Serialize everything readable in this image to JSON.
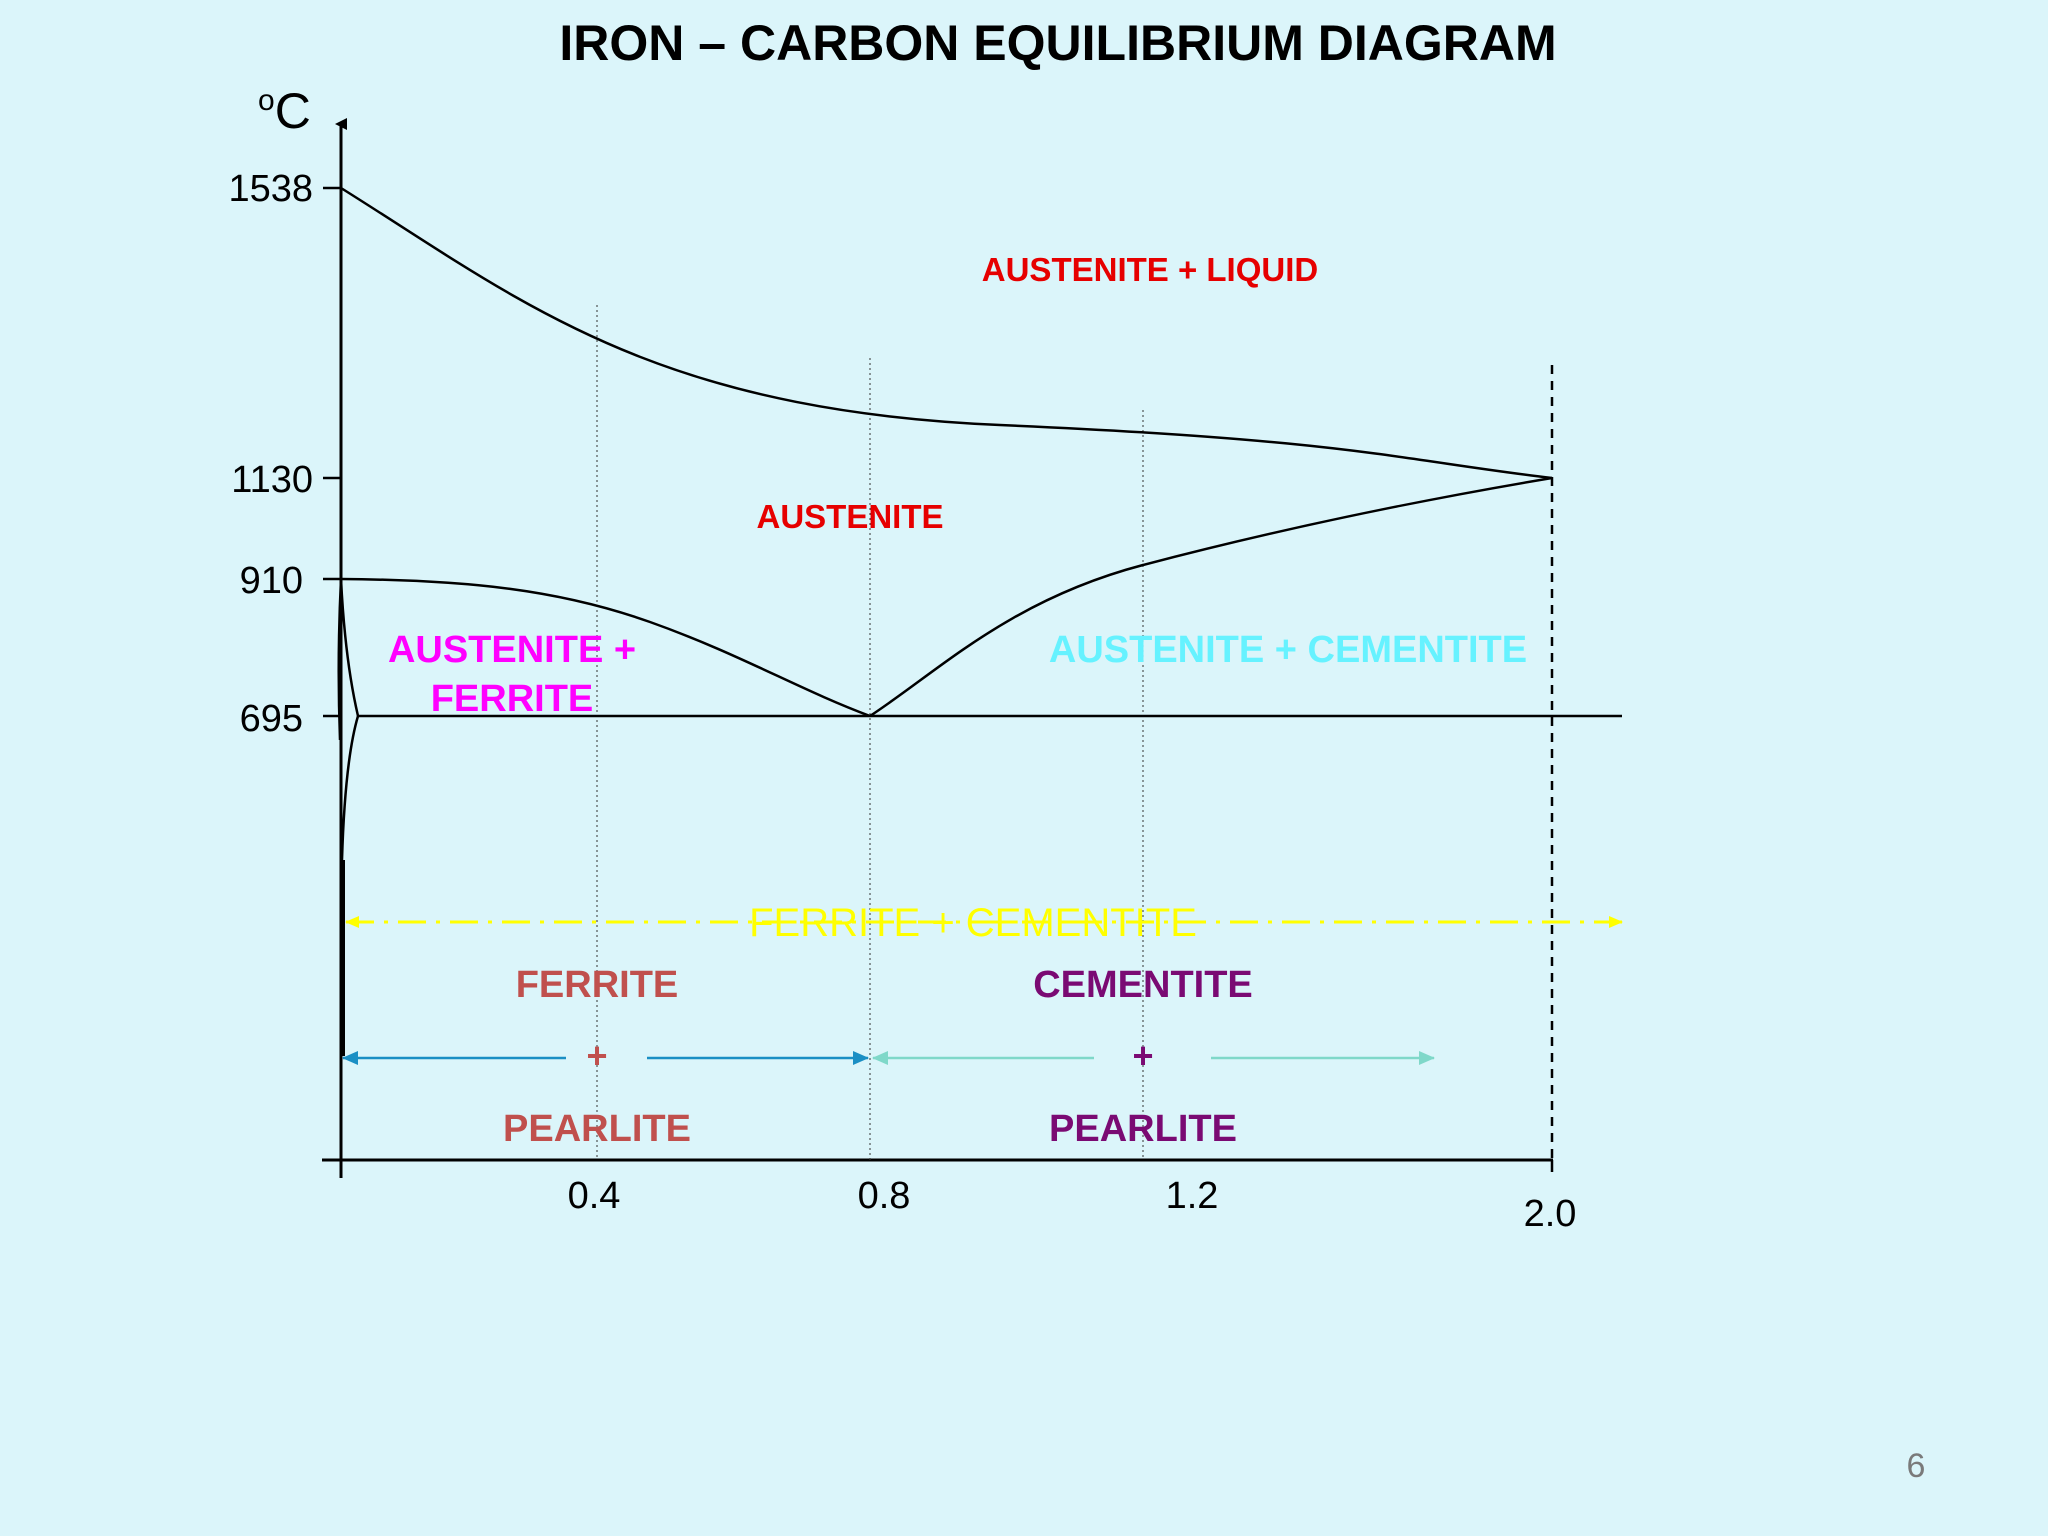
{
  "slide": {
    "title": "IRON – CARBON EQUILIBRIUM DIAGRAM",
    "page_number": "6"
  },
  "axes": {
    "y_unit_superscript": "o",
    "y_unit": "C",
    "y_ticks": [
      "1538",
      "1130",
      "910",
      "695"
    ],
    "x_ticks": [
      "0.4",
      "0.8",
      "1.2",
      "2.0"
    ]
  },
  "regions": {
    "austenite_liquid": "AUSTENITE + LIQUID",
    "austenite": "AUSTENITE",
    "austenite_ferrite_line1": "AUSTENITE +",
    "austenite_ferrite_line2": "FERRITE",
    "austenite_cementite": "AUSTENITE + CEMENTITE",
    "ferrite_cementite": "FERRITE + CEMENTITE",
    "ferrite_pearlite": {
      "top": "FERRITE",
      "plus": "+",
      "bottom": "PEARLITE"
    },
    "cementite_pearlite": {
      "top": "CEMENTITE",
      "plus": "+",
      "bottom": "PEARLITE"
    }
  },
  "colors": {
    "background": "#dbf5fa",
    "austenite_text": "#e60000",
    "austenite_ferrite_text": "#ff00ff",
    "austenite_cementite_text": "#66f2ff",
    "ferrite_cementite_text": "#ffff00",
    "ferrite_pearlite_text": "#c0504d",
    "cementite_pearlite_text": "#7a0a73",
    "hypoeutectoid_arrow": "#1a8fc4",
    "hypereutectoid_arrow": "#7fd8c9"
  }
}
